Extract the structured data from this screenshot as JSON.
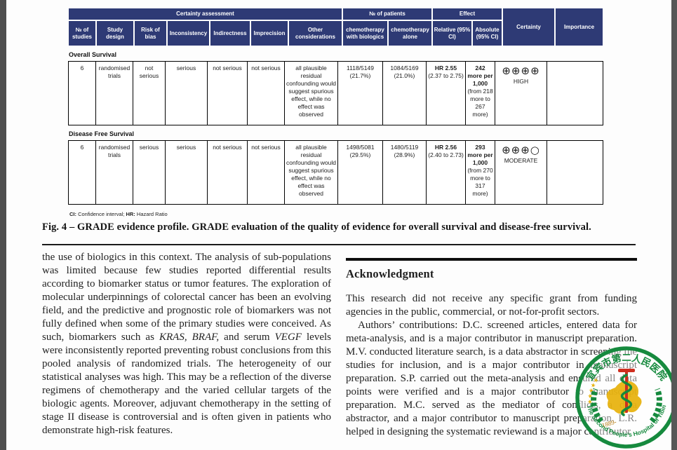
{
  "colors": {
    "header_navy": "#2e3a75",
    "stamp_green": "#168a3e",
    "stamp_gold": "#e7b10a",
    "stamp_red": "#cf2e1f"
  },
  "table": {
    "header": {
      "group_certainty": "Certainty assessment",
      "group_patients": "№ of patients",
      "group_effect": "Effect",
      "cols": [
        "№ of studies",
        "Study design",
        "Risk of bias",
        "Inconsistency",
        "Indirectness",
        "Imprecision",
        "Other considerations",
        "chemotherapy with biologics",
        "chemotherapy alone",
        "Relative (95% CI)",
        "Absolute (95% CI)"
      ],
      "certainty": "Certainty",
      "importance": "Importance"
    },
    "sections": [
      {
        "title": "Overall Survival",
        "row": {
          "n_studies": "6",
          "study_design": "randomised trials",
          "risk_of_bias": "not serious",
          "inconsistency": "serious",
          "indirectness": "not serious",
          "imprecision": "not serious",
          "other_considerations": "all plausible residual confounding would suggest spurious effect, while no effect was observed",
          "chemo_biologics": "1118/5149 (21.7%)",
          "chemo_alone": "1084/5169 (21.0%)",
          "relative_bold": "HR 2.55",
          "relative_rest": "(2.37 to 2.75)",
          "absolute_bold": "242 more per 1,000",
          "absolute_rest": "(from 218 more to 267 more)",
          "certainty_symbols": "⊕⊕⊕⊕",
          "certainty_label": "HIGH",
          "importance": ""
        }
      },
      {
        "title": "Disease Free Survival",
        "row": {
          "n_studies": "6",
          "study_design": "randomised trials",
          "risk_of_bias": "serious",
          "inconsistency": "serious",
          "indirectness": "not serious",
          "imprecision": "not serious",
          "other_considerations": "all plausible residual confounding would suggest spurious effect, while no effect was observed",
          "chemo_biologics": "1498/5081 (29.5%)",
          "chemo_alone": "1480/5119 (28.9%)",
          "relative_bold": "HR 2.56",
          "relative_rest": "(2.40 to 2.73)",
          "absolute_bold": "293 more per 1,000",
          "absolute_rest": "(from 270 more to 317 more)",
          "certainty_symbols": "⊕⊕⊕○",
          "certainty_label": "MODERATE",
          "importance": ""
        }
      }
    ],
    "footnote_segments": [
      {
        "t": "CI:",
        "b": true
      },
      {
        "t": " Confidence interval; "
      },
      {
        "t": "HR:",
        "b": true
      },
      {
        "t": " Hazard Ratio"
      }
    ]
  },
  "figure": {
    "caption": "Fig. 4 – GRADE evidence profile. GRADE evaluation of the quality of evidence for overall survival and disease-free survival."
  },
  "article": {
    "left_paragraph_segments": [
      {
        "t": "the use of biologics in this context. The analysis of sub-populations was limited because few studies reported differential results according to biomarker status or tumor features. The exploration of molecular underpinnings of colorectal cancer has been an evolving field, and the predictive and prognostic role of biomarkers was not fully defined when some of the primary studies were conceived. As such, biomarkers such as "
      },
      {
        "t": "KRAS, BRAF,",
        "i": true
      },
      {
        "t": " and serum "
      },
      {
        "t": "VEGF",
        "i": true
      },
      {
        "t": " levels were inconsistently reported preventing robust conclusions from this pooled analysis of randomized trials. The heterogeneity of our statistical analyses was high. This may be a reflection of the diverse regimens of chemotherapy and the varied cellular targets of the biologic agents. Moreover, adjuvant chemotherapy in the setting of stage II disease is controversial and is often given in patients who demonstrate high-risk features."
      }
    ],
    "acknowledgment": {
      "heading": "Acknowledgment",
      "para1": "This research did not receive any specific grant from funding agencies in the public, commercial, or not-for-profit sectors.",
      "para2": "Authors’ contributions: D.C. screened articles, entered data for meta-analysis, and is a major contributor in manuscript preparation. M.V. conducted literature search, is a data abstractor in screening the studies for inclusion, and is a major contributor in manuscript preparation. S.P. carried out the meta-analysis and ensured all data points were verified and is a major contributor to manuscript preparation. M.C. served as the mediator of conflicts, a data abstractor, and a major contributor to manuscript preparation. L.R. helped in designing the systematic reviewand is a major contributor"
    }
  },
  "stamp": {
    "top_text": "宜宾市第二人民医院",
    "bottom_text": "The Second People's Hospital of Yibin",
    "year": "1889-",
    "stars": "★★★★★"
  }
}
